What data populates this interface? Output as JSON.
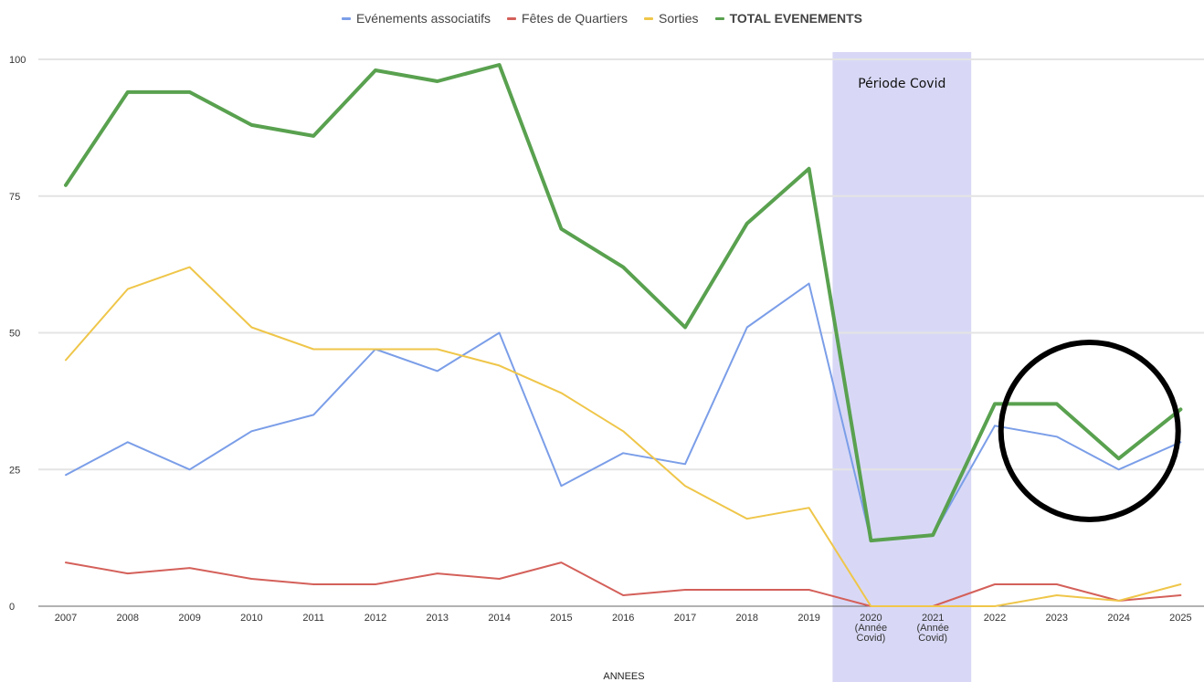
{
  "chart_data": {
    "type": "line",
    "title": "",
    "xlabel": "ANNEES",
    "ylabel": "",
    "ylim": [
      0,
      100
    ],
    "yticks": [
      "0",
      "25",
      "50",
      "75",
      "100"
    ],
    "categories": [
      [
        "2007"
      ],
      [
        "2008"
      ],
      [
        "2009"
      ],
      [
        "2010"
      ],
      [
        "2011"
      ],
      [
        "2012"
      ],
      [
        "2013"
      ],
      [
        "2014"
      ],
      [
        "2015"
      ],
      [
        "2016"
      ],
      [
        "2017"
      ],
      [
        "2018"
      ],
      [
        "2019"
      ],
      [
        "2020",
        "(Année",
        "Covid)"
      ],
      [
        "2021",
        "(Année",
        "Covid)"
      ],
      [
        "2022"
      ],
      [
        "2023"
      ],
      [
        "2024"
      ],
      [
        "2025"
      ]
    ],
    "series": [
      {
        "name": "Evénements associatifs",
        "color": "#7b9ee8",
        "bold": false,
        "values": [
          24,
          30,
          25,
          32,
          35,
          47,
          43,
          50,
          22,
          28,
          26,
          51,
          59,
          12,
          13,
          33,
          31,
          25,
          30
        ]
      },
      {
        "name": "Fêtes de Quartiers",
        "color": "#d4605a",
        "bold": false,
        "values": [
          8,
          6,
          7,
          5,
          4,
          4,
          6,
          5,
          8,
          2,
          3,
          3,
          3,
          0,
          0,
          4,
          4,
          1,
          2
        ]
      },
      {
        "name": "Sorties",
        "color": "#efc64a",
        "bold": false,
        "values": [
          45,
          58,
          62,
          51,
          47,
          47,
          47,
          44,
          39,
          32,
          22,
          16,
          18,
          0,
          0,
          0,
          2,
          1,
          4
        ]
      },
      {
        "name": "TOTAL EVENEMENTS",
        "color": "#59a14f",
        "bold": true,
        "values": [
          77,
          94,
          94,
          88,
          86,
          98,
          96,
          99,
          69,
          62,
          51,
          70,
          80,
          12,
          13,
          37,
          37,
          27,
          36
        ]
      }
    ],
    "annotations": {
      "covid_band": {
        "from_category": "2020",
        "to_category": "2021",
        "label": "Période Covid",
        "color": "#d8d8f6"
      },
      "highlight_circle": {
        "from_category": "2023",
        "to_category": "2024",
        "color": "#000000"
      }
    },
    "grid": true,
    "legend_position": "top-center"
  }
}
